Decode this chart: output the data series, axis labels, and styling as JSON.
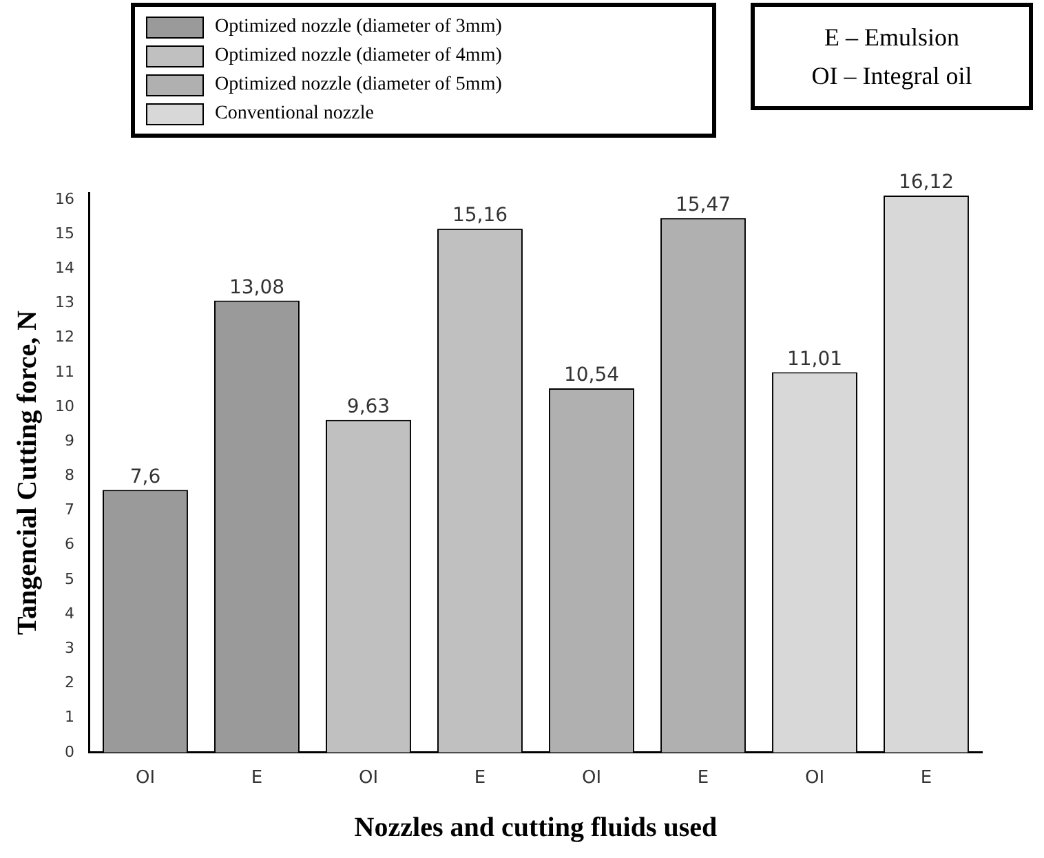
{
  "chart_data": {
    "type": "bar",
    "xlabel": "Nozzles and cutting fluids used",
    "ylabel": "Tangencial Cutting force, N",
    "categories": [
      "OI",
      "E",
      "OI",
      "E",
      "OI",
      "E",
      "OI",
      "E"
    ],
    "series": [
      {
        "name": "Optimized nozzle (diameter of 3mm)",
        "color": "#9a9a9a",
        "values": [
          7.6,
          13.08,
          null,
          null,
          null,
          null,
          null,
          null
        ],
        "value_labels": [
          "7,6",
          "13,08",
          null,
          null,
          null,
          null,
          null,
          null
        ]
      },
      {
        "name": "Optimized nozzle (diameter of 4mm)",
        "color": "#c0c0c0",
        "values": [
          null,
          null,
          9.63,
          15.16,
          null,
          null,
          null,
          null
        ],
        "value_labels": [
          null,
          null,
          "9,63",
          "15,16",
          null,
          null,
          null,
          null
        ]
      },
      {
        "name": "Optimized nozzle (diameter of 5mm)",
        "color": "#b0b0b0",
        "values": [
          null,
          null,
          null,
          null,
          10.54,
          15.47,
          null,
          null
        ],
        "value_labels": [
          null,
          null,
          null,
          null,
          "10,54",
          "15,47",
          null,
          null
        ]
      },
      {
        "name": "Conventional nozzle",
        "color": "#d8d8d8",
        "values": [
          null,
          null,
          null,
          null,
          null,
          null,
          11.01,
          16.12
        ],
        "value_labels": [
          null,
          null,
          null,
          null,
          null,
          null,
          "11,01",
          "16,12"
        ]
      }
    ],
    "ylim": [
      0,
      16.2
    ],
    "yticks": [
      0,
      1,
      2,
      3,
      4,
      5,
      6,
      7,
      8,
      9,
      10,
      11,
      12,
      13,
      14,
      15,
      16
    ],
    "grid": false,
    "legend": "top left",
    "annotations": [
      "E – Emulsion",
      "OI – Integral oil"
    ]
  }
}
